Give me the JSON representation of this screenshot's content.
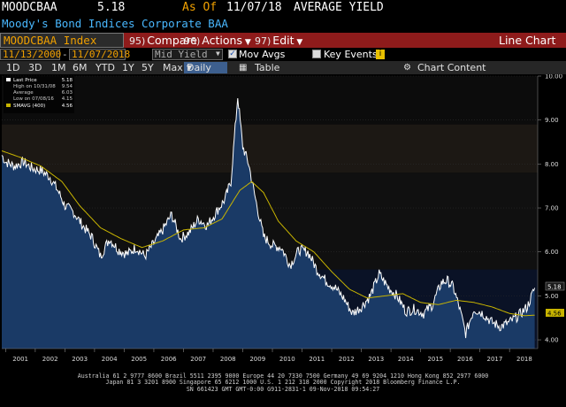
{
  "header": {
    "ticker": "MOODCBAA",
    "last_value": "5.18",
    "as_of_label": "As Of",
    "as_of_date": "11/07/18",
    "field_label": "AVERAGE YIELD",
    "security_name": "Moody's Bond Indices Corporate BAA"
  },
  "toolbar": {
    "ticker_box": "MOODCBAA Index",
    "compare_num": "95)",
    "compare_label": "Compare",
    "actions_num": "96)",
    "actions_label": "Actions",
    "edit_num": "97)",
    "edit_label": "Edit",
    "chart_type": "Line Chart"
  },
  "daterow": {
    "start_date": "11/13/2000",
    "end_date": "11/07/2018",
    "field": "Mid Yield",
    "mov_avgs_label": "Mov Avgs",
    "key_events_label": "Key Events"
  },
  "periods": {
    "items": [
      "1D",
      "3D",
      "1M",
      "6M",
      "YTD",
      "1Y",
      "5Y",
      "Max"
    ],
    "frequency": "Daily",
    "table_label": "Table",
    "chart_content_label": "Chart Content"
  },
  "legend": {
    "last_price_label": "Last Price",
    "last_price_value": "5.18",
    "high_label": "High on 10/31/08",
    "high_value": "9.54",
    "average_label": "Average",
    "average_value": "6.03",
    "low_label": "Low on 07/08/16",
    "low_value": "4.15",
    "smavg_label": "SMAVG (400)",
    "smavg_value": "4.56"
  },
  "colors": {
    "price_line": "#ffffff",
    "price_fill": "#1a3a66",
    "smavg_line": "#c8b400",
    "toolbar_red": "#8e1b1b",
    "amber": "#f0a000"
  },
  "chart_data": {
    "type": "area",
    "title": "Moody's Bond Indices Corporate BAA",
    "ylabel": "AVERAGE YIELD",
    "ylim": [
      3.8,
      10.0
    ],
    "yticks": [
      "10.00",
      "9.00",
      "8.00",
      "7.00",
      "6.00",
      "5.00",
      "4.00"
    ],
    "xticks": [
      "2001",
      "2002",
      "2003",
      "2004",
      "2005",
      "2006",
      "2007",
      "2008",
      "2009",
      "2010",
      "2011",
      "2012",
      "2013",
      "2014",
      "2015",
      "2016",
      "2017",
      "2018"
    ],
    "series": [
      {
        "name": "Last Price",
        "x": [
          2000.87,
          2001.0,
          2001.3,
          2001.6,
          2001.9,
          2002.2,
          2002.5,
          2002.8,
          2003.0,
          2003.3,
          2003.6,
          2003.9,
          2004.2,
          2004.5,
          2004.8,
          2005.1,
          2005.4,
          2005.7,
          2006.0,
          2006.3,
          2006.6,
          2006.9,
          2007.2,
          2007.5,
          2007.8,
          2008.1,
          2008.4,
          2008.6,
          2008.83,
          2009.0,
          2009.2,
          2009.4,
          2009.7,
          2010.0,
          2010.3,
          2010.6,
          2010.9,
          2011.2,
          2011.5,
          2011.8,
          2012.1,
          2012.4,
          2012.7,
          2013.0,
          2013.3,
          2013.6,
          2013.9,
          2014.2,
          2014.5,
          2014.8,
          2015.1,
          2015.4,
          2015.7,
          2015.9,
          2016.1,
          2016.3,
          2016.52,
          2016.8,
          2017.1,
          2017.4,
          2017.7,
          2018.0,
          2018.3,
          2018.6,
          2018.85
        ],
        "values": [
          8.2,
          8.05,
          7.95,
          8.05,
          7.9,
          7.85,
          7.7,
          7.35,
          7.05,
          6.9,
          6.6,
          6.35,
          5.9,
          6.3,
          6.05,
          5.95,
          6.1,
          5.9,
          6.2,
          6.5,
          6.85,
          6.3,
          6.45,
          6.75,
          6.6,
          6.9,
          7.2,
          7.6,
          9.54,
          8.4,
          8.0,
          7.3,
          6.35,
          6.15,
          6.1,
          5.7,
          6.05,
          6.0,
          5.6,
          5.35,
          5.2,
          4.95,
          4.6,
          4.75,
          5.0,
          5.5,
          5.2,
          5.0,
          4.65,
          4.7,
          4.6,
          4.8,
          5.3,
          5.35,
          5.2,
          4.75,
          4.15,
          4.7,
          4.6,
          4.4,
          4.3,
          4.4,
          4.55,
          4.75,
          5.18
        ]
      },
      {
        "name": "SMAVG (400)",
        "x": [
          2000.87,
          2001.5,
          2002.2,
          2002.9,
          2003.5,
          2004.2,
          2004.9,
          2005.6,
          2006.3,
          2007.0,
          2007.7,
          2008.3,
          2008.9,
          2009.3,
          2009.7,
          2010.2,
          2010.8,
          2011.4,
          2012.0,
          2012.6,
          2013.2,
          2013.8,
          2014.4,
          2015.0,
          2015.6,
          2016.2,
          2016.8,
          2017.4,
          2018.0,
          2018.5,
          2018.85
        ],
        "values": [
          8.3,
          8.15,
          7.95,
          7.6,
          7.05,
          6.55,
          6.3,
          6.1,
          6.25,
          6.5,
          6.55,
          6.75,
          7.4,
          7.6,
          7.35,
          6.7,
          6.25,
          6.0,
          5.55,
          5.15,
          4.95,
          5.0,
          5.05,
          4.85,
          4.8,
          4.9,
          4.85,
          4.75,
          4.6,
          4.55,
          4.56
        ]
      }
    ]
  },
  "footer": {
    "line1": "Australia 61 2 9777 8600 Brazil 5511 2395 9000 Europe 44 20 7330 7500 Germany 49 69 9204 1210 Hong Kong 852 2977 6000",
    "line2": "Japan 81 3 3201 8900 Singapore 65 6212 1000 U.S. 1 212 318 2000 Copyright 2018 Bloomberg Finance L.P.",
    "line3": "SN 661423 GMT GMT-0:00 G911-2831-1 09-Nov-2018 09:54:27"
  }
}
